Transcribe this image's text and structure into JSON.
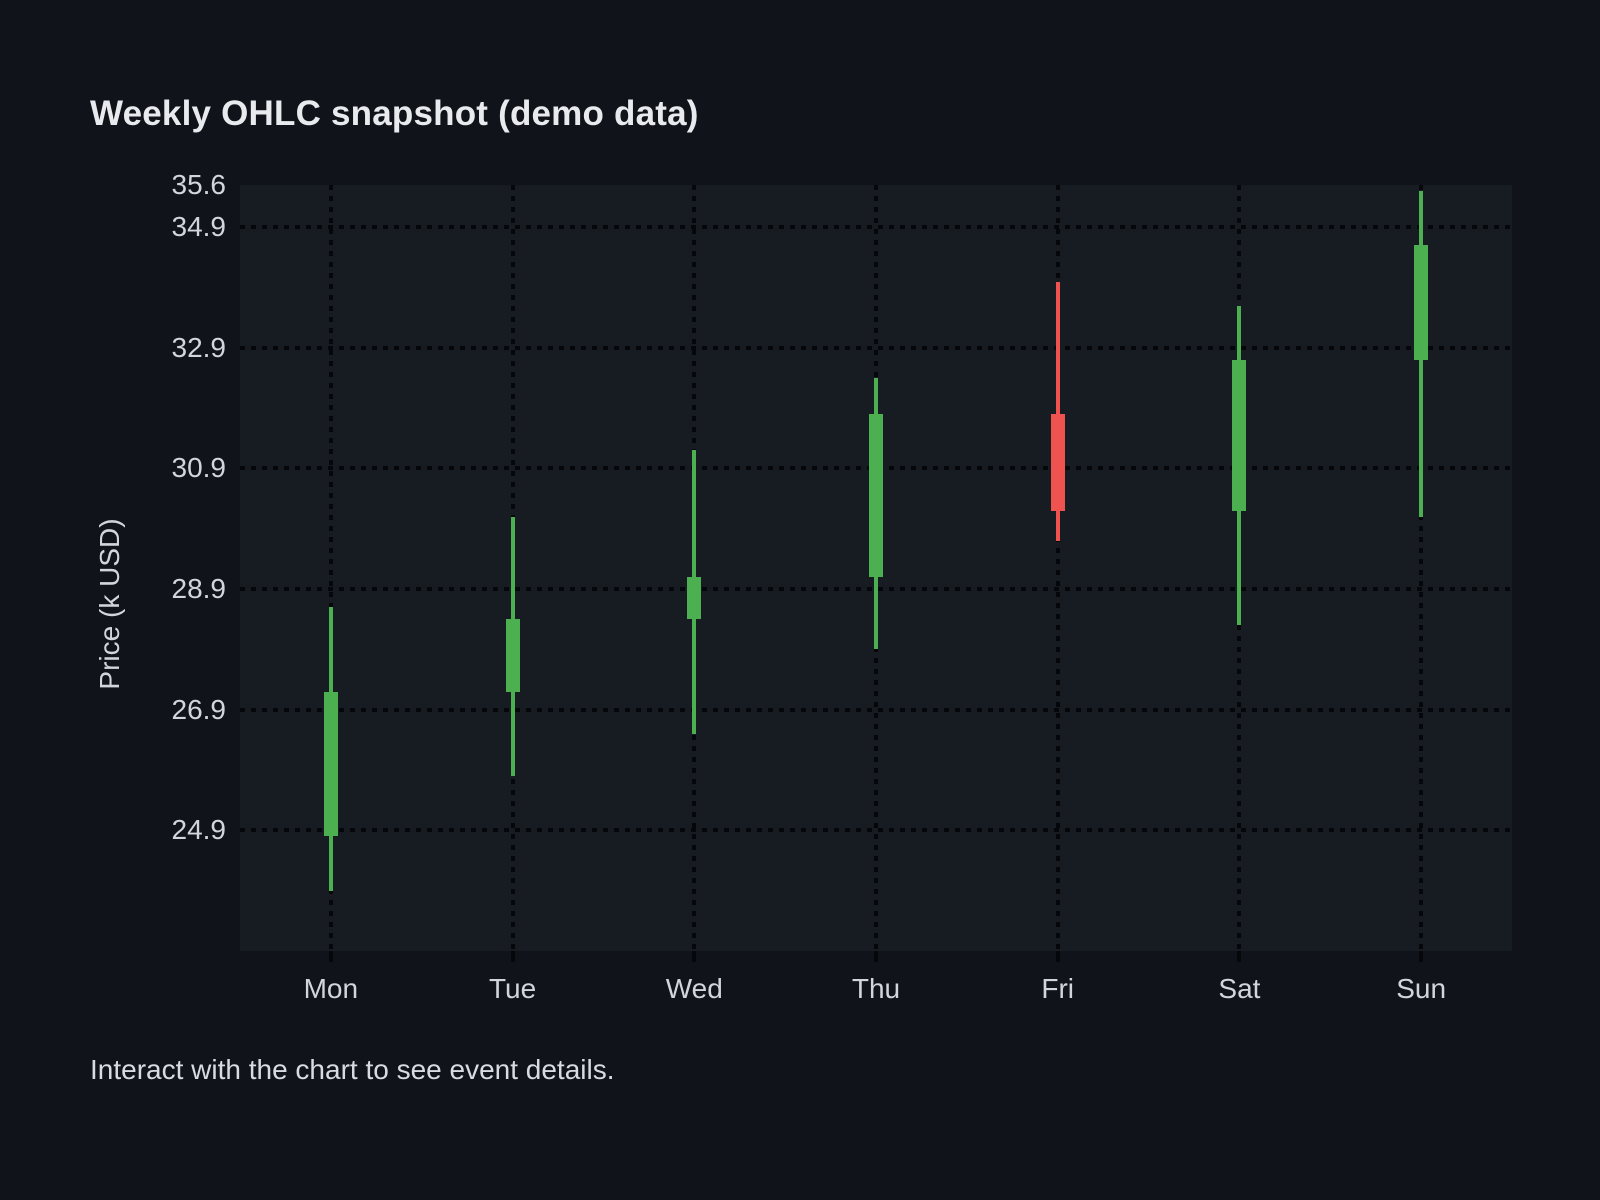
{
  "page": {
    "title": "Weekly OHLC snapshot (demo data)",
    "footer": "Interact with the chart to see event details."
  },
  "chart_data": {
    "type": "candlestick",
    "title": "Weekly OHLC snapshot (demo data)",
    "xlabel": "",
    "ylabel": "Price (k USD)",
    "categories": [
      "Mon",
      "Tue",
      "Wed",
      "Thu",
      "Fri",
      "Sat",
      "Sun"
    ],
    "series": [
      {
        "name": "Weekly OHLC",
        "values": [
          {
            "day": "Mon",
            "open": 24.8,
            "high": 28.6,
            "low": 23.9,
            "close": 27.2,
            "direction": "up"
          },
          {
            "day": "Tue",
            "open": 27.2,
            "high": 30.1,
            "low": 25.8,
            "close": 28.4,
            "direction": "up"
          },
          {
            "day": "Wed",
            "open": 28.4,
            "high": 31.2,
            "low": 26.5,
            "close": 29.1,
            "direction": "up"
          },
          {
            "day": "Thu",
            "open": 29.1,
            "high": 32.4,
            "low": 27.9,
            "close": 31.8,
            "direction": "up"
          },
          {
            "day": "Fri",
            "open": 31.8,
            "high": 34.0,
            "low": 29.7,
            "close": 30.2,
            "direction": "down"
          },
          {
            "day": "Sat",
            "open": 30.2,
            "high": 33.6,
            "low": 28.3,
            "close": 32.7,
            "direction": "up"
          },
          {
            "day": "Sun",
            "open": 32.7,
            "high": 35.5,
            "low": 30.1,
            "close": 34.6,
            "direction": "up"
          }
        ]
      }
    ],
    "ylim": [
      22.9,
      35.6
    ],
    "yticks": [
      {
        "label": "35.6",
        "value": 35.6,
        "gridline": false
      },
      {
        "label": "34.9",
        "value": 34.9,
        "gridline": true
      },
      {
        "label": "32.9",
        "value": 32.9,
        "gridline": true
      },
      {
        "label": "30.9",
        "value": 30.9,
        "gridline": true
      },
      {
        "label": "28.9",
        "value": 28.9,
        "gridline": true
      },
      {
        "label": "26.9",
        "value": 26.9,
        "gridline": true
      },
      {
        "label": "24.9",
        "value": 24.9,
        "gridline": true
      }
    ],
    "grid": "dotted",
    "legend": "none",
    "colors": {
      "up": "#4caf50",
      "down": "#ef5350"
    }
  }
}
